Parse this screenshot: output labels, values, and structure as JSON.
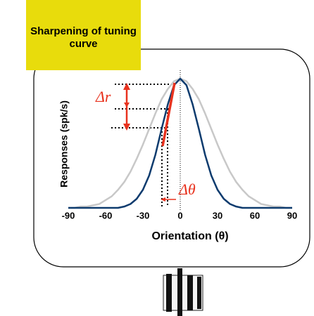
{
  "chart_data": {
    "type": "line",
    "title": "Sharpening of tuning curve",
    "xlabel": "Orientation (θ)",
    "ylabel": "Responses (spk/s)",
    "annotations": [
      "Δr",
      "Δθ"
    ],
    "x": [
      -90,
      -85,
      -80,
      -75,
      -70,
      -65,
      -60,
      -55,
      -50,
      -45,
      -40,
      -35,
      -30,
      -25,
      -20,
      -15,
      -10,
      -5,
      0,
      5,
      10,
      15,
      20,
      25,
      30,
      35,
      40,
      45,
      50,
      55,
      60,
      65,
      70,
      75,
      80,
      85,
      90
    ],
    "xlim": [
      -90,
      90
    ],
    "xticks": [
      -90,
      -60,
      -30,
      0,
      30,
      60,
      90
    ],
    "ylim": [
      0,
      1
    ],
    "series": [
      {
        "color": "#c8c8c8",
        "values": [
          0,
          0,
          0.01,
          0.01,
          0.02,
          0.03,
          0.06,
          0.09,
          0.14,
          0.2,
          0.28,
          0.38,
          0.49,
          0.61,
          0.73,
          0.84,
          0.92,
          0.98,
          1,
          0.98,
          0.92,
          0.84,
          0.73,
          0.61,
          0.49,
          0.38,
          0.28,
          0.2,
          0.14,
          0.09,
          0.06,
          0.03,
          0.02,
          0.01,
          0.01,
          0,
          0
        ]
      },
      {
        "color": "#0d3b6e",
        "values": [
          0,
          0,
          0,
          0,
          0,
          0,
          0,
          0,
          0,
          0.01,
          0.03,
          0.07,
          0.14,
          0.25,
          0.41,
          0.61,
          0.8,
          0.95,
          1,
          0.95,
          0.8,
          0.61,
          0.41,
          0.25,
          0.14,
          0.07,
          0.03,
          0.01,
          0,
          0,
          0,
          0,
          0,
          0,
          0,
          0,
          0
        ]
      }
    ]
  }
}
